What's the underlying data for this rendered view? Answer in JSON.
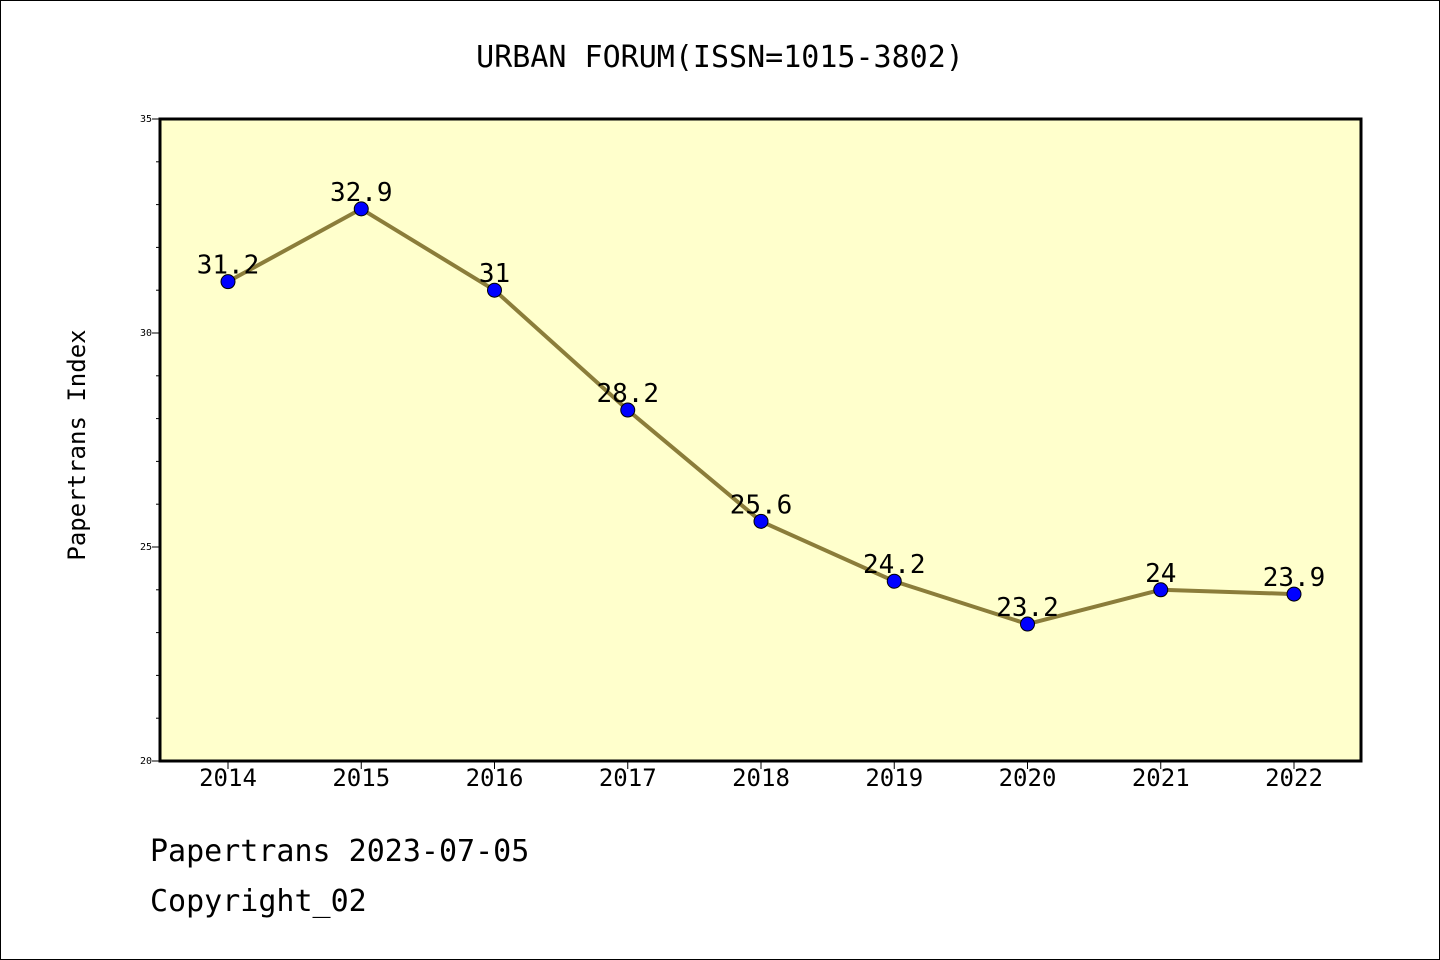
{
  "chart_data": {
    "type": "line",
    "title": "URBAN FORUM(ISSN=1015-3802)",
    "xlabel": "",
    "ylabel": "Papertrans Index",
    "categories": [
      "2014",
      "2015",
      "2016",
      "2017",
      "2018",
      "2019",
      "2020",
      "2021",
      "2022"
    ],
    "series": [
      {
        "values": [
          31.2,
          32.9,
          31,
          28.2,
          25.6,
          24.2,
          23.2,
          24,
          23.9
        ],
        "data_labels": [
          "31.2",
          "32.9",
          "31",
          "28.2",
          "25.6",
          "24.2",
          "23.2",
          "24",
          "23.9"
        ]
      }
    ],
    "ylim": [
      20,
      35
    ],
    "yticks": [
      "20",
      "25",
      "30",
      "35"
    ],
    "grid": false,
    "legend": "none",
    "colors": {
      "plot_background": "#ffffcc",
      "line": "#8b7d3a",
      "marker": "#0000ff"
    }
  },
  "footer": {
    "source": "Papertrans 2023-07-05",
    "copyright": "Copyright_02"
  }
}
